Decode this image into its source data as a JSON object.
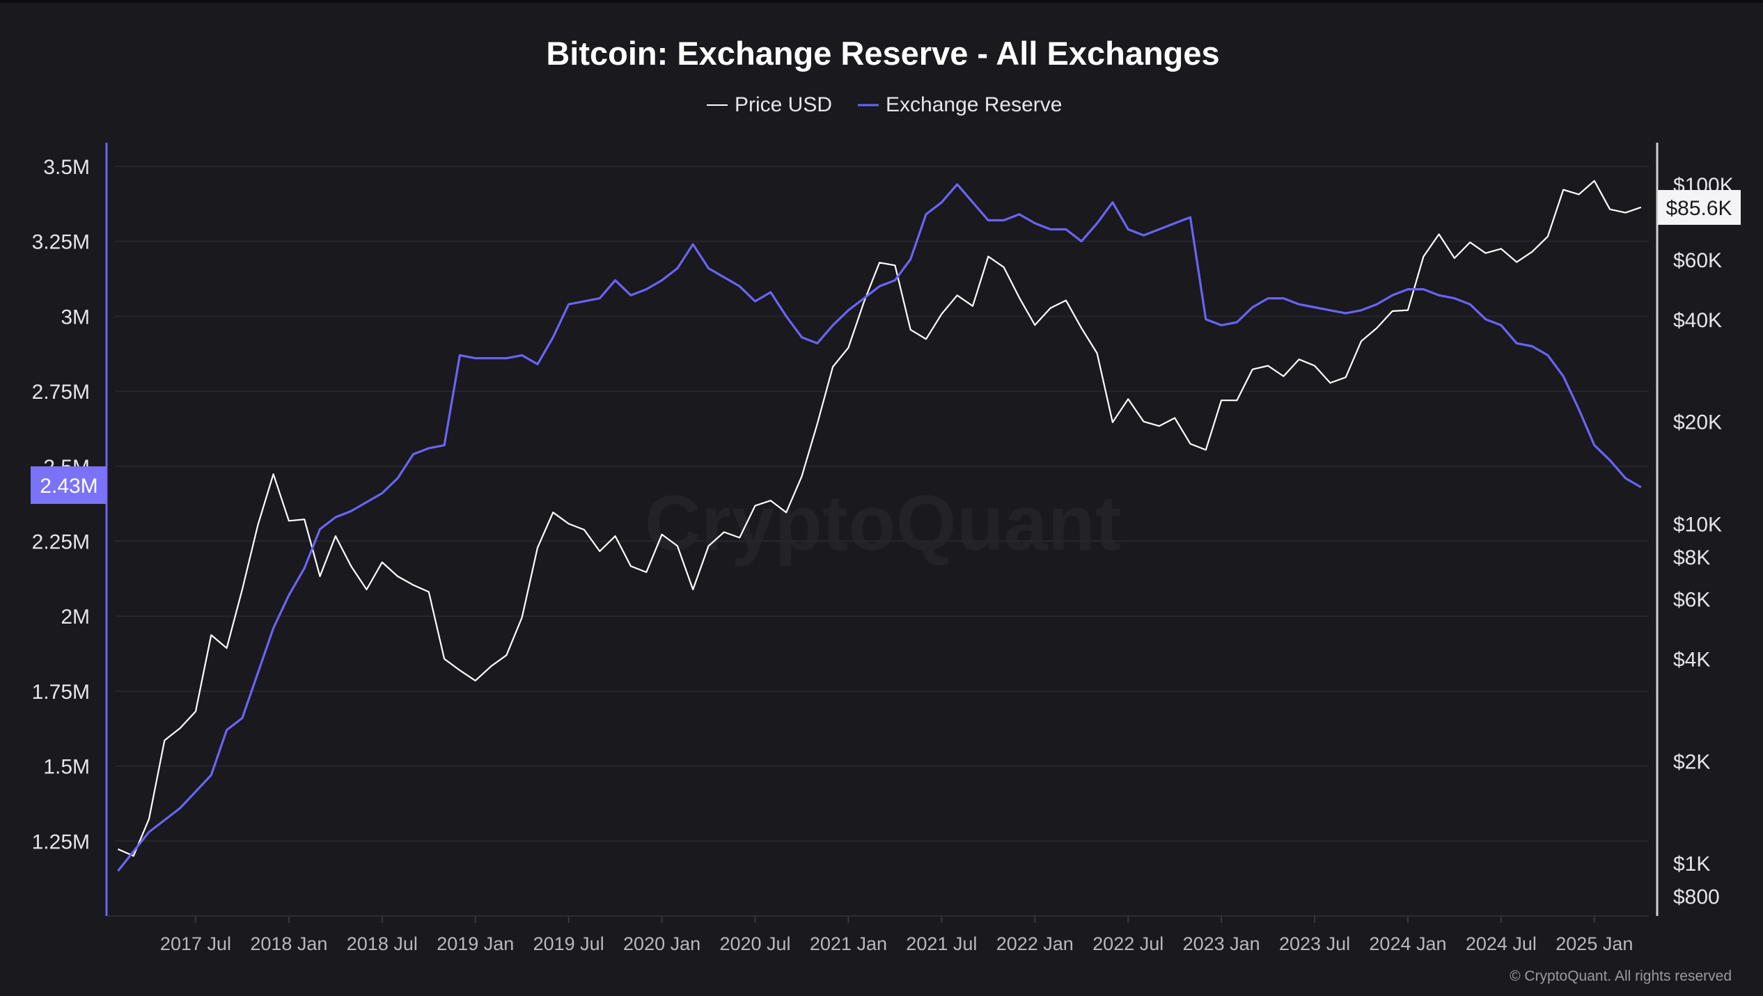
{
  "chart_data": {
    "type": "line",
    "title": "Bitcoin: Exchange Reserve - All Exchanges",
    "watermark": "CryptoQuant",
    "copyright": "© CryptoQuant. All rights reserved",
    "legend": {
      "placement": "top-center",
      "items": [
        "Price USD",
        "Exchange Reserve"
      ]
    },
    "colors": {
      "background": "#19191e",
      "price": "#ffffff",
      "reserve": "#6c63f5",
      "grid": "#26262c",
      "right_axis": "#d0d0d4"
    },
    "grid": true,
    "y_left": {
      "series": "Exchange Reserve",
      "ylim": [
        1.0,
        3.55
      ],
      "ticks": [
        3.5,
        3.25,
        3.0,
        2.75,
        2.5,
        2.25,
        2.0,
        1.75,
        1.5,
        1.25
      ],
      "tick_labels": [
        "3.5M",
        "3.25M",
        "3M",
        "2.75M",
        "2.5M",
        "2.25M",
        "2M",
        "1.75M",
        "1.5M",
        "1.25M"
      ],
      "current_label": "2.43M"
    },
    "y_right": {
      "series": "Price USD",
      "scale": "log",
      "ticks": [
        100000,
        60000,
        40000,
        20000,
        10000,
        8000,
        6000,
        4000,
        2000,
        1000,
        800
      ],
      "tick_labels": [
        "$100K",
        "$60K",
        "$40K",
        "$20K",
        "$10K",
        "$8K",
        "$6K",
        "$4K",
        "$2K",
        "$1K",
        "$800"
      ],
      "current_label": "$85.6K"
    },
    "x": {
      "ticks": [
        "2017-07",
        "2018-01",
        "2018-07",
        "2019-01",
        "2019-07",
        "2020-01",
        "2020-07",
        "2021-01",
        "2021-07",
        "2022-01",
        "2022-07",
        "2023-01",
        "2023-07",
        "2024-01",
        "2024-07",
        "2025-01"
      ],
      "tick_labels": [
        "2017 Jul",
        "2018 Jan",
        "2018 Jul",
        "2019 Jan",
        "2019 Jul",
        "2020 Jan",
        "2020 Jul",
        "2021 Jan",
        "2021 Jul",
        "2022 Jan",
        "2022 Jul",
        "2023 Jan",
        "2023 Jul",
        "2024 Jan",
        "2024 Jul",
        "2025 Jan"
      ]
    },
    "series": [
      {
        "name": "Exchange Reserve",
        "unit": "M BTC",
        "dates": [
          "2017-02",
          "2017-04",
          "2017-06",
          "2017-08",
          "2017-09",
          "2017-10",
          "2017-11",
          "2017-12",
          "2018-01",
          "2018-02",
          "2018-03",
          "2018-04",
          "2018-05",
          "2018-06",
          "2018-07",
          "2018-08",
          "2018-09",
          "2018-10",
          "2018-11",
          "2018-12",
          "2019-01",
          "2019-02",
          "2019-03",
          "2019-04",
          "2019-05",
          "2019-06",
          "2019-07",
          "2019-08",
          "2019-09",
          "2019-10",
          "2019-11",
          "2019-12",
          "2020-01",
          "2020-02",
          "2020-03",
          "2020-04",
          "2020-05",
          "2020-06",
          "2020-07",
          "2020-08",
          "2020-09",
          "2020-10",
          "2020-11",
          "2020-12",
          "2021-01",
          "2021-02",
          "2021-03",
          "2021-04",
          "2021-05",
          "2021-06",
          "2021-07",
          "2021-08",
          "2021-09",
          "2021-10",
          "2021-11",
          "2021-12",
          "2022-01",
          "2022-02",
          "2022-03",
          "2022-04",
          "2022-05",
          "2022-06",
          "2022-07",
          "2022-08",
          "2022-09",
          "2022-10",
          "2022-11",
          "2022-12",
          "2023-01",
          "2023-02",
          "2023-03",
          "2023-04",
          "2023-05",
          "2023-06",
          "2023-07",
          "2023-08",
          "2023-09",
          "2023-10",
          "2023-11",
          "2023-12",
          "2024-01",
          "2024-02",
          "2024-03",
          "2024-04",
          "2024-05",
          "2024-06",
          "2024-07",
          "2024-08",
          "2024-09",
          "2024-10",
          "2024-11",
          "2024-12",
          "2025-01",
          "2025-02",
          "2025-03",
          "2025-04"
        ],
        "values": [
          1.15,
          1.28,
          1.36,
          1.47,
          1.62,
          1.66,
          1.81,
          1.96,
          2.07,
          2.16,
          2.29,
          2.33,
          2.35,
          2.38,
          2.41,
          2.46,
          2.54,
          2.56,
          2.57,
          2.87,
          2.86,
          2.86,
          2.86,
          2.87,
          2.84,
          2.93,
          3.04,
          3.05,
          3.06,
          3.12,
          3.07,
          3.09,
          3.12,
          3.16,
          3.24,
          3.16,
          3.13,
          3.1,
          3.05,
          3.08,
          3.0,
          2.93,
          2.91,
          2.97,
          3.02,
          3.06,
          3.1,
          3.12,
          3.19,
          3.34,
          3.38,
          3.44,
          3.38,
          3.32,
          3.32,
          3.34,
          3.31,
          3.29,
          3.29,
          3.25,
          3.31,
          3.38,
          3.29,
          3.27,
          3.29,
          3.31,
          3.33,
          2.99,
          2.97,
          2.98,
          3.03,
          3.06,
          3.06,
          3.04,
          3.03,
          3.02,
          3.01,
          3.02,
          3.04,
          3.07,
          3.09,
          3.09,
          3.07,
          3.06,
          3.04,
          2.99,
          2.97,
          2.91,
          2.9,
          2.87,
          2.8,
          2.69,
          2.57,
          2.52,
          2.46,
          2.43
        ]
      },
      {
        "name": "Price USD",
        "unit": "USD",
        "dates": [
          "2017-02",
          "2017-03",
          "2017-04",
          "2017-05",
          "2017-06",
          "2017-07",
          "2017-08",
          "2017-09",
          "2017-10",
          "2017-11",
          "2017-12",
          "2018-01",
          "2018-02",
          "2018-03",
          "2018-04",
          "2018-05",
          "2018-06",
          "2018-07",
          "2018-08",
          "2018-09",
          "2018-10",
          "2018-11",
          "2018-12",
          "2019-01",
          "2019-02",
          "2019-03",
          "2019-04",
          "2019-05",
          "2019-06",
          "2019-07",
          "2019-08",
          "2019-09",
          "2019-10",
          "2019-11",
          "2019-12",
          "2020-01",
          "2020-02",
          "2020-03",
          "2020-04",
          "2020-05",
          "2020-06",
          "2020-07",
          "2020-08",
          "2020-09",
          "2020-10",
          "2020-11",
          "2020-12",
          "2021-01",
          "2021-02",
          "2021-03",
          "2021-04",
          "2021-05",
          "2021-06",
          "2021-07",
          "2021-08",
          "2021-09",
          "2021-10",
          "2021-11",
          "2021-12",
          "2022-01",
          "2022-02",
          "2022-03",
          "2022-04",
          "2022-05",
          "2022-06",
          "2022-07",
          "2022-08",
          "2022-09",
          "2022-10",
          "2022-11",
          "2022-12",
          "2023-01",
          "2023-02",
          "2023-03",
          "2023-04",
          "2023-05",
          "2023-06",
          "2023-07",
          "2023-08",
          "2023-09",
          "2023-10",
          "2023-11",
          "2023-12",
          "2024-01",
          "2024-02",
          "2024-03",
          "2024-04",
          "2024-05",
          "2024-06",
          "2024-07",
          "2024-08",
          "2024-09",
          "2024-10",
          "2024-11",
          "2024-12",
          "2025-01",
          "2025-02",
          "2025-03",
          "2025-04"
        ],
        "values": [
          1100,
          1050,
          1350,
          2300,
          2500,
          2800,
          4700,
          4300,
          6400,
          9900,
          14000,
          10200,
          10300,
          7000,
          9200,
          7500,
          6400,
          7700,
          7000,
          6600,
          6300,
          4000,
          3700,
          3450,
          3800,
          4100,
          5300,
          8500,
          10800,
          10000,
          9600,
          8300,
          9200,
          7500,
          7200,
          9300,
          8600,
          6400,
          8600,
          9450,
          9100,
          11300,
          11700,
          10800,
          13800,
          19700,
          29000,
          33000,
          45000,
          58800,
          57700,
          37300,
          35000,
          41500,
          47100,
          43800,
          61300,
          57000,
          46300,
          38500,
          43200,
          45500,
          37700,
          31800,
          19900,
          23300,
          20000,
          19400,
          20500,
          17200,
          16500,
          23100,
          23100,
          28500,
          29200,
          27200,
          30500,
          29200,
          26000,
          27000,
          34500,
          37700,
          42300,
          42600,
          61200,
          71300,
          60600,
          67500,
          62700,
          64600,
          59000,
          63300,
          70200,
          96400,
          93400,
          102400,
          84400,
          82500,
          85600
        ]
      }
    ]
  }
}
